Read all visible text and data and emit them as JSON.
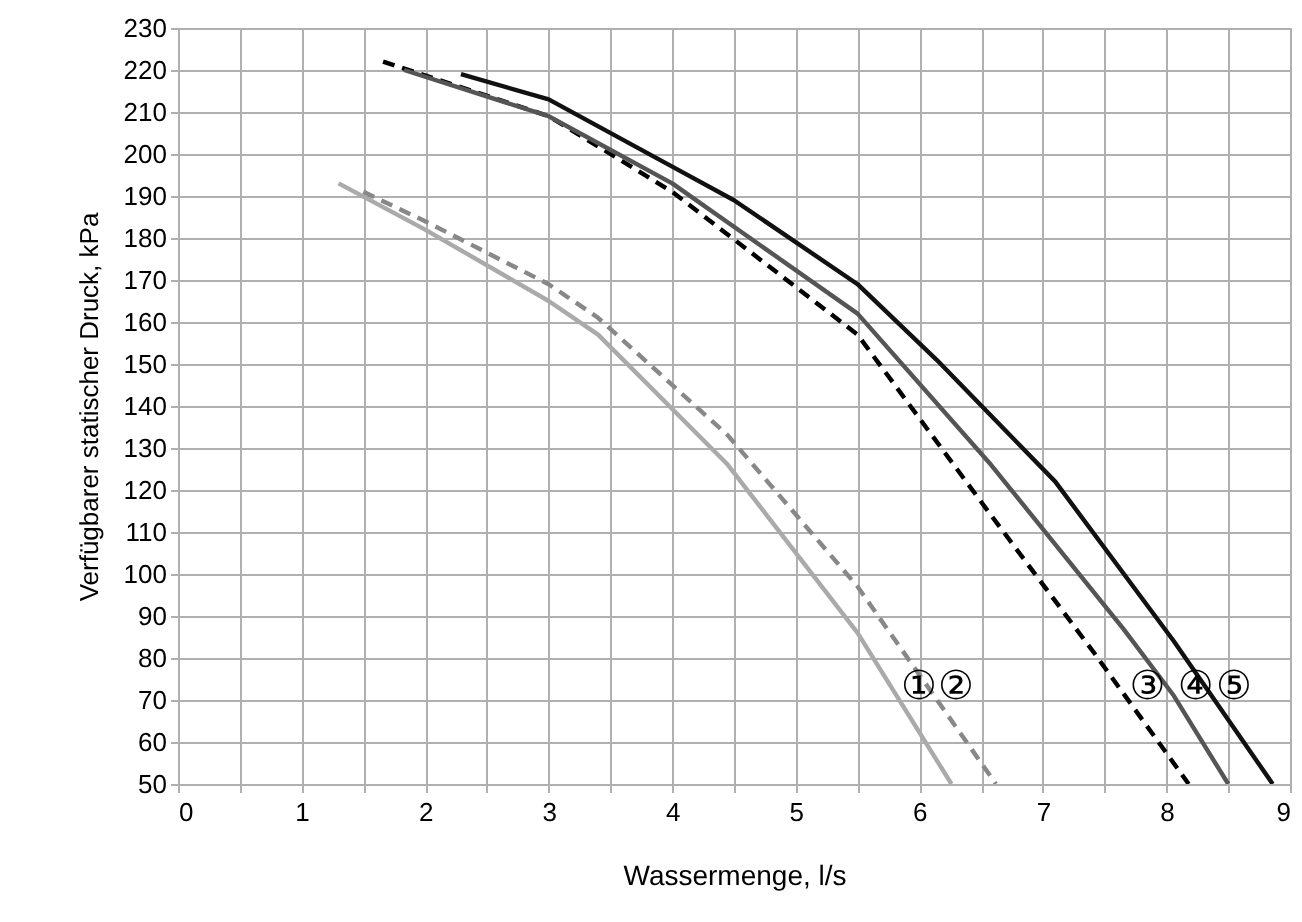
{
  "chart_data": {
    "type": "line",
    "xlabel": "Wassermenge, l/s",
    "ylabel": "Verfügbarer statischer Druck, kPa",
    "xlim": [
      0,
      9
    ],
    "ylim": [
      50,
      230
    ],
    "xticks": [
      0,
      {
        "value": 0.5,
        "label": null
      },
      1,
      {
        "value": 1.5,
        "label": null
      },
      2,
      {
        "value": 2.5,
        "label": null
      },
      3,
      {
        "value": 3.5,
        "label": null
      },
      4,
      {
        "value": 4.5,
        "label": null
      },
      5,
      {
        "value": 5.5,
        "label": null
      },
      6,
      {
        "value": 6.5,
        "label": null
      },
      7,
      {
        "value": 7.5,
        "label": null
      },
      8,
      {
        "value": 8.5,
        "label": null
      },
      9
    ],
    "yticks": [
      50,
      60,
      70,
      80,
      90,
      100,
      110,
      120,
      130,
      140,
      150,
      160,
      170,
      180,
      190,
      200,
      210,
      220,
      230
    ],
    "grid": true,
    "marker": "none",
    "series": [
      {
        "color": "#aaaaaa",
        "line_style": "solid",
        "x": [
          1.3,
          2,
          3,
          3.4,
          4.45,
          5.5,
          6.26
        ],
        "values": [
          193,
          182,
          165,
          157,
          126,
          86,
          50
        ]
      },
      {
        "color": "#888888",
        "line_style": "dashed",
        "x": [
          1.5,
          2,
          3,
          3.4,
          4.45,
          5.5,
          6.62
        ],
        "values": [
          191,
          184,
          169,
          161,
          133,
          97,
          50
        ]
      },
      {
        "color": "#000000",
        "line_style": "dashed",
        "x": [
          1.66,
          3,
          4,
          5.5,
          6.58,
          7.42,
          8.18
        ],
        "values": [
          222,
          209,
          191,
          157,
          114,
          81,
          50
        ]
      },
      {
        "color": "#555555",
        "line_style": "solid",
        "x": [
          1.83,
          3,
          4,
          5.5,
          6.58,
          7.65,
          8.06,
          8.5
        ],
        "values": [
          220,
          209,
          193,
          162,
          126,
          87,
          71,
          50
        ]
      },
      {
        "color": "#111111",
        "line_style": "solid",
        "x": [
          2.29,
          3,
          4,
          4.5,
          5.5,
          6.14,
          7.1,
          8.06,
          8.86
        ],
        "values": [
          219,
          213,
          197,
          189,
          169,
          151,
          122,
          84,
          50
        ]
      }
    ],
    "annotations": [
      {
        "text": "①",
        "x": 5.77,
        "y": 73
      },
      {
        "text": "②",
        "x": 6.07,
        "y": 73
      },
      {
        "text": "③",
        "x": 7.62,
        "y": 73
      },
      {
        "text": "④",
        "x": 8.01,
        "y": 73
      },
      {
        "text": "⑤",
        "x": 8.32,
        "y": 73
      }
    ]
  }
}
